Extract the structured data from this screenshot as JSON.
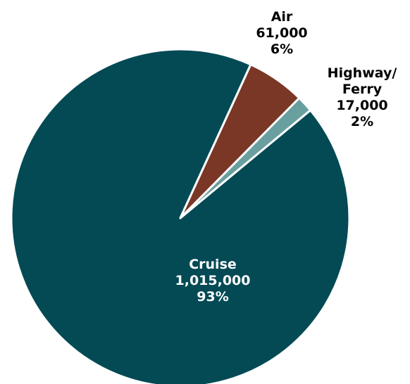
{
  "chart_data": {
    "type": "pie",
    "title": "",
    "slices": [
      {
        "category": "Cruise",
        "value": 1015000,
        "value_label": "1,015,000",
        "percent_label": "93%",
        "color": "#044a55"
      },
      {
        "category": "Air",
        "value": 61000,
        "value_label": "61,000",
        "percent_label": "6%",
        "color": "#7a3726"
      },
      {
        "category": "Highway/ Ferry",
        "category_lines": [
          "Highway/",
          "Ferry"
        ],
        "value": 17000,
        "value_label": "17,000",
        "percent_label": "2%",
        "color": "#6a9fa0"
      }
    ],
    "legend": "none",
    "slice_border_color": "#ffffff"
  }
}
